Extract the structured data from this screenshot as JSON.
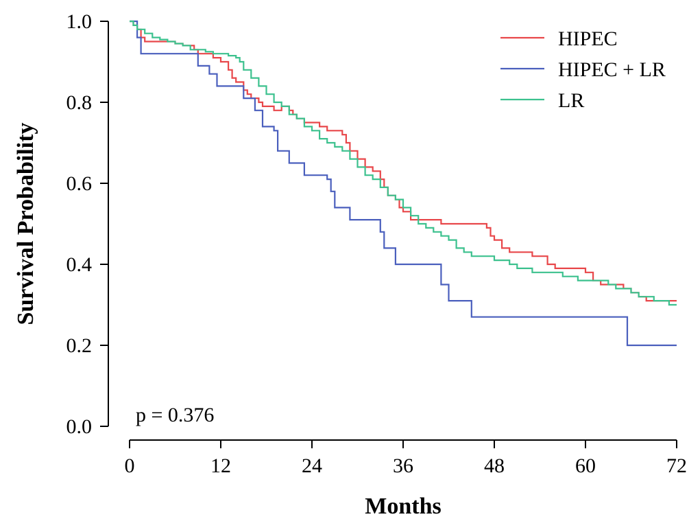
{
  "chart_data": {
    "type": "line",
    "title": "",
    "xlabel": "Months",
    "ylabel": "Survival Probability",
    "xlim": [
      0,
      72
    ],
    "ylim": [
      0,
      1
    ],
    "x_ticks": [
      "0",
      "12",
      "24",
      "36",
      "48",
      "60",
      "72"
    ],
    "y_ticks": [
      "0.0",
      "0.2",
      "0.4",
      "0.6",
      "0.8",
      "1.0"
    ],
    "annotation": "p = 0.376",
    "legend_position": "top-right",
    "grid": false,
    "series": [
      {
        "name": "HIPEC",
        "color": "#e8474a",
        "step": true,
        "points": [
          [
            0,
            1.0
          ],
          [
            0.5,
            0.99
          ],
          [
            1,
            0.98
          ],
          [
            1.5,
            0.96
          ],
          [
            2,
            0.95
          ],
          [
            4,
            0.95
          ],
          [
            6,
            0.945
          ],
          [
            7,
            0.94
          ],
          [
            8.5,
            0.93
          ],
          [
            9,
            0.92
          ],
          [
            10,
            0.92
          ],
          [
            11,
            0.91
          ],
          [
            12,
            0.9
          ],
          [
            13,
            0.88
          ],
          [
            13.5,
            0.86
          ],
          [
            14,
            0.85
          ],
          [
            15,
            0.83
          ],
          [
            15.5,
            0.82
          ],
          [
            16,
            0.81
          ],
          [
            17,
            0.8
          ],
          [
            17.5,
            0.79
          ],
          [
            19,
            0.78
          ],
          [
            20,
            0.79
          ],
          [
            21,
            0.78
          ],
          [
            21.5,
            0.77
          ],
          [
            22,
            0.76
          ],
          [
            23,
            0.75
          ],
          [
            25,
            0.74
          ],
          [
            26,
            0.73
          ],
          [
            28,
            0.72
          ],
          [
            28.5,
            0.7
          ],
          [
            29,
            0.68
          ],
          [
            30,
            0.66
          ],
          [
            31,
            0.64
          ],
          [
            32,
            0.63
          ],
          [
            33,
            0.61
          ],
          [
            33.5,
            0.59
          ],
          [
            34,
            0.57
          ],
          [
            35,
            0.56
          ],
          [
            35.5,
            0.54
          ],
          [
            36,
            0.53
          ],
          [
            37,
            0.51
          ],
          [
            38,
            0.51
          ],
          [
            40,
            0.51
          ],
          [
            41,
            0.5
          ],
          [
            43,
            0.5
          ],
          [
            46,
            0.5
          ],
          [
            47,
            0.49
          ],
          [
            47.5,
            0.47
          ],
          [
            48,
            0.46
          ],
          [
            49,
            0.44
          ],
          [
            50,
            0.43
          ],
          [
            51,
            0.43
          ],
          [
            52,
            0.43
          ],
          [
            53,
            0.42
          ],
          [
            55,
            0.4
          ],
          [
            56,
            0.39
          ],
          [
            58,
            0.39
          ],
          [
            60,
            0.38
          ],
          [
            61,
            0.36
          ],
          [
            62,
            0.35
          ],
          [
            64,
            0.35
          ],
          [
            65,
            0.34
          ],
          [
            66,
            0.33
          ],
          [
            67,
            0.32
          ],
          [
            68,
            0.31
          ],
          [
            70,
            0.31
          ],
          [
            72,
            0.31
          ]
        ]
      },
      {
        "name": "HIPEC + LR",
        "color": "#4a5fbd",
        "step": true,
        "points": [
          [
            0,
            1.0
          ],
          [
            1,
            0.96
          ],
          [
            1.5,
            0.92
          ],
          [
            5,
            0.92
          ],
          [
            8,
            0.92
          ],
          [
            9,
            0.89
          ],
          [
            10.5,
            0.87
          ],
          [
            11.5,
            0.84
          ],
          [
            14.5,
            0.84
          ],
          [
            15,
            0.81
          ],
          [
            16.5,
            0.78
          ],
          [
            17.5,
            0.74
          ],
          [
            19,
            0.73
          ],
          [
            19.5,
            0.68
          ],
          [
            21,
            0.65
          ],
          [
            23,
            0.62
          ],
          [
            26,
            0.61
          ],
          [
            26.5,
            0.58
          ],
          [
            27,
            0.54
          ],
          [
            29,
            0.51
          ],
          [
            32,
            0.51
          ],
          [
            33,
            0.48
          ],
          [
            33.5,
            0.44
          ],
          [
            35,
            0.4
          ],
          [
            40,
            0.4
          ],
          [
            41,
            0.35
          ],
          [
            42,
            0.31
          ],
          [
            44,
            0.31
          ],
          [
            45,
            0.27
          ],
          [
            50,
            0.27
          ],
          [
            55,
            0.27
          ],
          [
            65,
            0.27
          ],
          [
            65.5,
            0.2
          ],
          [
            72,
            0.2
          ]
        ]
      },
      {
        "name": "LR",
        "color": "#3cc18e",
        "step": true,
        "points": [
          [
            0,
            1.0
          ],
          [
            0.5,
            0.99
          ],
          [
            1,
            0.98
          ],
          [
            2,
            0.97
          ],
          [
            3,
            0.96
          ],
          [
            4,
            0.955
          ],
          [
            5,
            0.95
          ],
          [
            6,
            0.945
          ],
          [
            7,
            0.94
          ],
          [
            8,
            0.93
          ],
          [
            9,
            0.93
          ],
          [
            10,
            0.925
          ],
          [
            11,
            0.92
          ],
          [
            13,
            0.915
          ],
          [
            14,
            0.91
          ],
          [
            14.5,
            0.9
          ],
          [
            15,
            0.88
          ],
          [
            16,
            0.86
          ],
          [
            17,
            0.84
          ],
          [
            18,
            0.82
          ],
          [
            19,
            0.8
          ],
          [
            20,
            0.79
          ],
          [
            21,
            0.77
          ],
          [
            22,
            0.76
          ],
          [
            23,
            0.74
          ],
          [
            24,
            0.73
          ],
          [
            25,
            0.71
          ],
          [
            26,
            0.7
          ],
          [
            27,
            0.69
          ],
          [
            28,
            0.68
          ],
          [
            29,
            0.66
          ],
          [
            30,
            0.64
          ],
          [
            31,
            0.62
          ],
          [
            32,
            0.61
          ],
          [
            33,
            0.59
          ],
          [
            34,
            0.57
          ],
          [
            35,
            0.56
          ],
          [
            36,
            0.54
          ],
          [
            37,
            0.52
          ],
          [
            38,
            0.5
          ],
          [
            39,
            0.49
          ],
          [
            40,
            0.48
          ],
          [
            41,
            0.47
          ],
          [
            42,
            0.46
          ],
          [
            43,
            0.44
          ],
          [
            44,
            0.43
          ],
          [
            45,
            0.42
          ],
          [
            46,
            0.42
          ],
          [
            47,
            0.42
          ],
          [
            48,
            0.41
          ],
          [
            49,
            0.41
          ],
          [
            50,
            0.4
          ],
          [
            51,
            0.39
          ],
          [
            52,
            0.39
          ],
          [
            53,
            0.38
          ],
          [
            55,
            0.38
          ],
          [
            56,
            0.38
          ],
          [
            57,
            0.37
          ],
          [
            58,
            0.37
          ],
          [
            59,
            0.36
          ],
          [
            60,
            0.36
          ],
          [
            62,
            0.36
          ],
          [
            63,
            0.35
          ],
          [
            64,
            0.34
          ],
          [
            65,
            0.34
          ],
          [
            66,
            0.33
          ],
          [
            67,
            0.32
          ],
          [
            68,
            0.32
          ],
          [
            69,
            0.31
          ],
          [
            70,
            0.31
          ],
          [
            71,
            0.3
          ],
          [
            72,
            0.3
          ]
        ]
      }
    ]
  }
}
